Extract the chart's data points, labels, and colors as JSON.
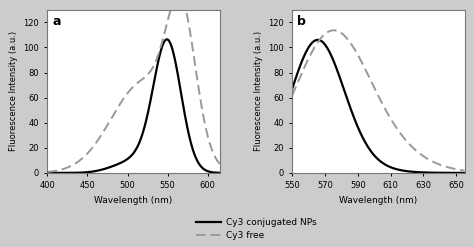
{
  "panel_a": {
    "label": "a",
    "xlim": [
      400,
      615
    ],
    "xticks": [
      400,
      450,
      500,
      550,
      600
    ],
    "ylim": [
      0,
      130
    ],
    "yticks": [
      0,
      20,
      40,
      60,
      80,
      100,
      120
    ],
    "xlabel": "Wavelength (nm)",
    "ylabel": "Fluorescence Intensity (a.u.)"
  },
  "panel_b": {
    "label": "b",
    "xlim": [
      550,
      655
    ],
    "xticks": [
      550,
      570,
      590,
      610,
      630,
      650
    ],
    "ylim": [
      0,
      130
    ],
    "yticks": [
      0,
      20,
      40,
      60,
      80,
      100,
      120
    ],
    "xlabel": "Wavelength (nm)",
    "ylabel": "Fluorescence Intensity (a.u.)"
  },
  "legend": {
    "solid_label": "Cy3 conjugated NPs",
    "dashed_label": "Cy3 free"
  },
  "solid_color": "#000000",
  "dashed_color": "#999999",
  "bg_color": "#cccccc",
  "panel_bg": "#ffffff",
  "border_color": "#aaaaaa"
}
